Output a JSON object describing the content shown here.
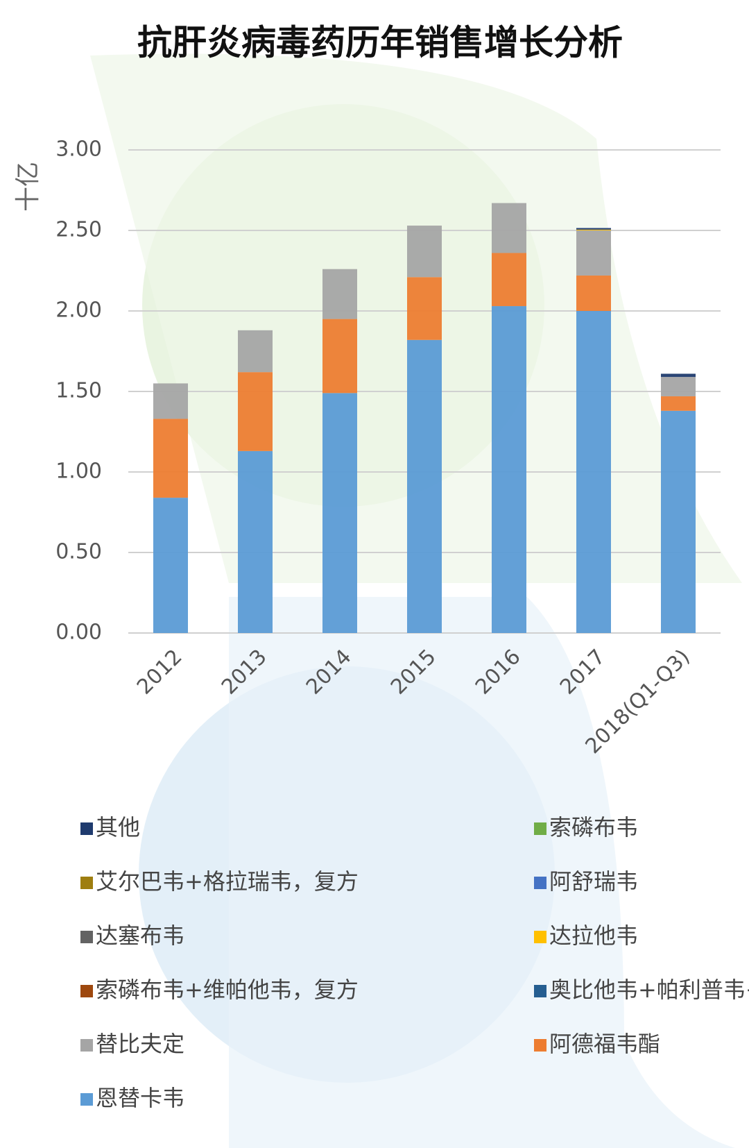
{
  "chart_data": {
    "type": "stacked-bar",
    "title": "抗肝炎病毒药历年销售增长分析",
    "y_label": "十亿",
    "categories": [
      "2012",
      "2013",
      "2014",
      "2015",
      "2016",
      "2017",
      "2018(Q1-Q3)"
    ],
    "series": [
      {
        "name": "恩替卡韦",
        "color": "#5b9bd5",
        "values": [
          0.84,
          1.13,
          1.49,
          1.82,
          2.03,
          2.0,
          1.38
        ]
      },
      {
        "name": "阿德福韦酯",
        "color": "#ed7d31",
        "values": [
          0.49,
          0.49,
          0.46,
          0.39,
          0.33,
          0.22,
          0.09
        ]
      },
      {
        "name": "替比夫定",
        "color": "#a5a5a5",
        "values": [
          0.22,
          0.26,
          0.31,
          0.32,
          0.31,
          0.28,
          0.12
        ]
      },
      {
        "name": "奥比他韦+帕利普韦+利托那韦，复方",
        "color": "#255e91",
        "values": [
          0,
          0,
          0,
          0,
          0,
          0,
          0
        ]
      },
      {
        "name": "索磷布韦+维帕他韦，复方",
        "color": "#9e480e",
        "values": [
          0,
          0,
          0,
          0,
          0,
          0,
          0
        ]
      },
      {
        "name": "达拉他韦",
        "color": "#ffc000",
        "values": [
          0,
          0,
          0,
          0,
          0,
          0.005,
          0
        ]
      },
      {
        "name": "达塞布韦",
        "color": "#636363",
        "values": [
          0,
          0,
          0,
          0,
          0,
          0,
          0
        ]
      },
      {
        "name": "阿舒瑞韦",
        "color": "#4472c4",
        "values": [
          0,
          0,
          0,
          0,
          0,
          0,
          0
        ]
      },
      {
        "name": "艾尔巴韦+格拉瑞韦，复方",
        "color": "#9e7e10",
        "values": [
          0,
          0,
          0,
          0,
          0,
          0,
          0
        ]
      },
      {
        "name": "索磷布韦",
        "color": "#70ad47",
        "values": [
          0,
          0,
          0,
          0,
          0,
          0,
          0
        ]
      },
      {
        "name": "其他",
        "color": "#1f3b6e",
        "values": [
          0,
          0,
          0,
          0,
          0,
          0.01,
          0.02
        ]
      }
    ],
    "ylim": [
      0,
      3
    ],
    "yticks": [
      {
        "value": 0,
        "label": "0.00"
      },
      {
        "value": 0.5,
        "label": "0.50"
      },
      {
        "value": 1,
        "label": "1.00"
      },
      {
        "value": 1.5,
        "label": "1.50"
      },
      {
        "value": 2,
        "label": "2.00"
      },
      {
        "value": 2.5,
        "label": "2.50"
      },
      {
        "value": 3,
        "label": "3.00"
      }
    ],
    "grid": true
  }
}
